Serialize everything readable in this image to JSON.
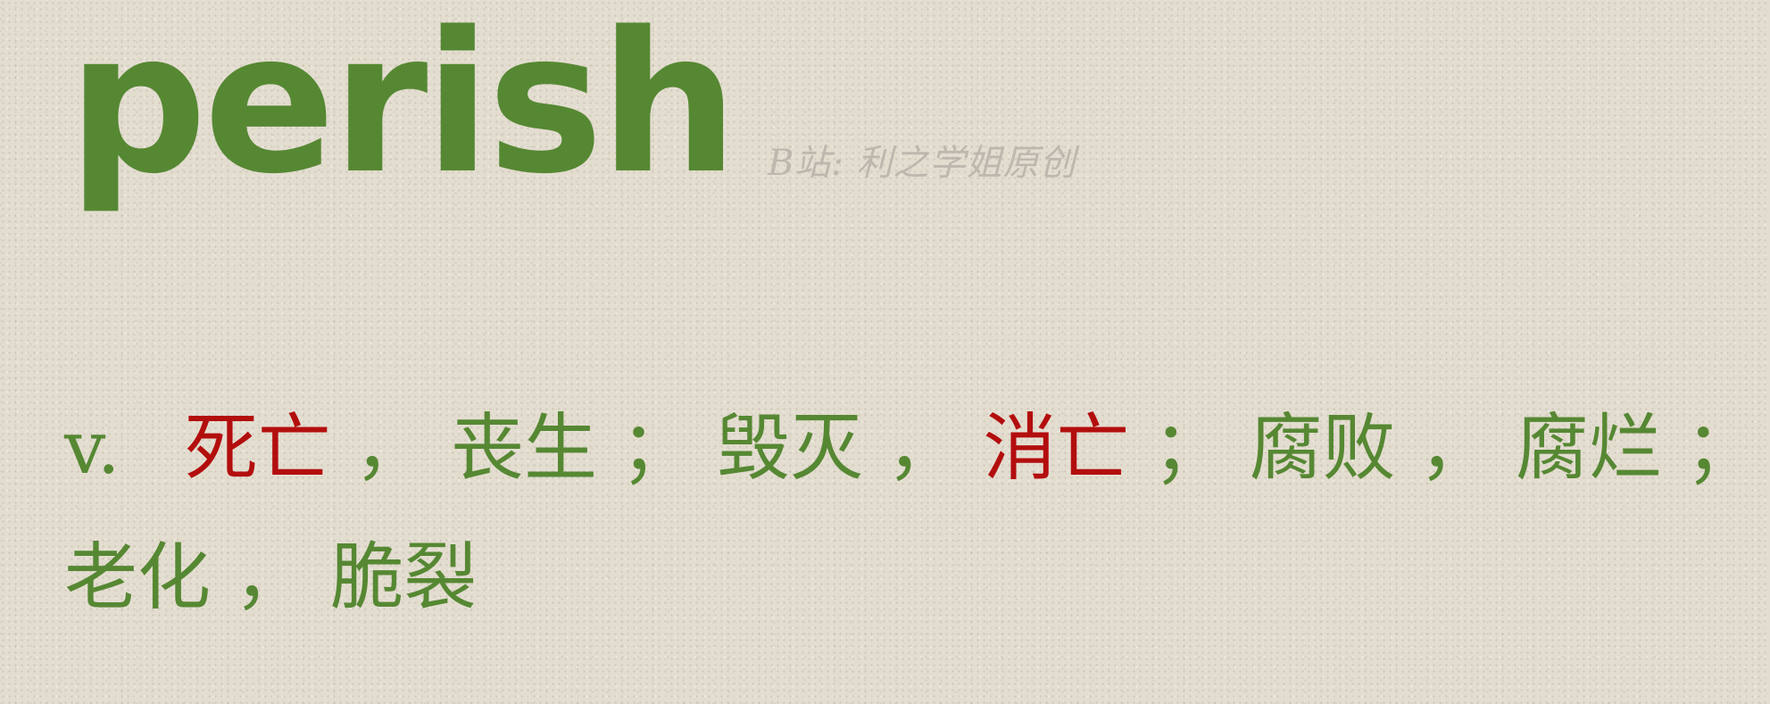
{
  "headword": "perish",
  "watermark": "B站: 利之学姐原创",
  "definition": {
    "pos": "v.",
    "lines": [
      [
        {
          "text": "死亡",
          "emphasis": true
        },
        {
          "text": "，",
          "emphasis": false
        },
        {
          "text": "丧生",
          "emphasis": false
        },
        {
          "text": "；",
          "emphasis": false
        },
        {
          "text": "毁灭",
          "emphasis": false
        },
        {
          "text": "，",
          "emphasis": false
        },
        {
          "text": "消亡",
          "emphasis": true
        },
        {
          "text": "；",
          "emphasis": false
        },
        {
          "text": "腐败",
          "emphasis": false
        },
        {
          "text": "，",
          "emphasis": false
        },
        {
          "text": "腐烂",
          "emphasis": false
        },
        {
          "text": "；",
          "emphasis": false
        }
      ],
      [
        {
          "text": "老化",
          "emphasis": false
        },
        {
          "text": "，",
          "emphasis": false
        },
        {
          "text": "脆裂",
          "emphasis": false
        }
      ]
    ]
  },
  "colors": {
    "headword": "#568833",
    "text": "#568833",
    "emphasis": "#b30e0e",
    "watermark": "#b9b4ab"
  }
}
